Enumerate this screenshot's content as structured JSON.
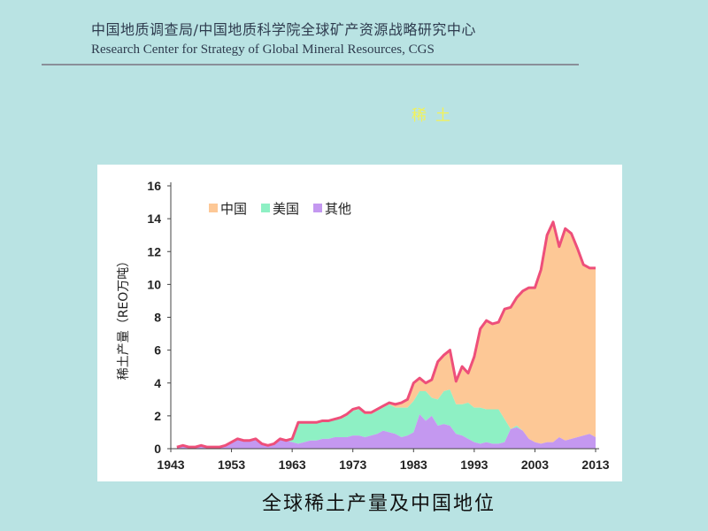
{
  "header": {
    "org_cn": "中国地质调查局/中国地质科学院全球矿产资源战略研究中心",
    "org_en": "Research Center for Strategy of Global Mineral Resources, CGS"
  },
  "topic": "稀土",
  "caption": "全球稀土产量及中国地位",
  "colors": {
    "background": "#b9e3e3",
    "china": "#fdc896",
    "usa": "#8ef0c4",
    "other": "#c498f0",
    "total_line": "#ee4f7a",
    "topic_text": "#f2f25a"
  },
  "chart_data": {
    "type": "area",
    "stacked": true,
    "ylabel": "稀土产量（REO万吨）",
    "xlabel": "",
    "ylim": [
      0,
      16
    ],
    "yticks": [
      "0",
      "2",
      "4",
      "6",
      "8",
      "10",
      "12",
      "14",
      "16"
    ],
    "xticks": [
      "1943",
      "1953",
      "1963",
      "1973",
      "1983",
      "1993",
      "2003",
      "2013"
    ],
    "xlim": [
      1943,
      2013
    ],
    "legend_position": "top-left",
    "legend": [
      "中国",
      "美国",
      "其他"
    ],
    "x": [
      1944,
      1945,
      1946,
      1947,
      1948,
      1949,
      1950,
      1951,
      1952,
      1953,
      1954,
      1955,
      1956,
      1957,
      1958,
      1959,
      1960,
      1961,
      1962,
      1963,
      1964,
      1965,
      1966,
      1967,
      1968,
      1969,
      1970,
      1971,
      1972,
      1973,
      1974,
      1975,
      1976,
      1977,
      1978,
      1979,
      1980,
      1981,
      1982,
      1983,
      1984,
      1985,
      1986,
      1987,
      1988,
      1989,
      1990,
      1991,
      1992,
      1993,
      1994,
      1995,
      1996,
      1997,
      1998,
      1999,
      2000,
      2001,
      2002,
      2003,
      2004,
      2005,
      2006,
      2007,
      2008,
      2009,
      2010,
      2011,
      2012,
      2013
    ],
    "series": [
      {
        "name": "其他",
        "values": [
          0.1,
          0.2,
          0.1,
          0.1,
          0.2,
          0.1,
          0.1,
          0.1,
          0.2,
          0.4,
          0.6,
          0.5,
          0.5,
          0.6,
          0.3,
          0.2,
          0.3,
          0.6,
          0.5,
          0.4,
          0.3,
          0.4,
          0.5,
          0.5,
          0.6,
          0.6,
          0.7,
          0.7,
          0.7,
          0.8,
          0.8,
          0.7,
          0.8,
          0.9,
          1.1,
          1.0,
          0.9,
          0.7,
          0.8,
          1.0,
          2.1,
          1.7,
          2.0,
          1.4,
          1.5,
          1.4,
          0.9,
          0.8,
          0.6,
          0.4,
          0.3,
          0.4,
          0.3,
          0.3,
          0.4,
          1.2,
          1.3,
          1.1,
          0.6,
          0.4,
          0.3,
          0.4,
          0.4,
          0.7,
          0.5,
          0.6,
          0.7,
          0.8,
          0.9,
          0.7
        ]
      },
      {
        "name": "美国",
        "values": [
          0,
          0,
          0,
          0,
          0,
          0,
          0,
          0,
          0,
          0,
          0,
          0,
          0,
          0,
          0,
          0,
          0,
          0,
          0,
          0.2,
          1.3,
          1.2,
          1.1,
          1.1,
          1.1,
          1.1,
          1.1,
          1.1,
          1.3,
          1.5,
          1.6,
          1.4,
          1.3,
          1.4,
          1.4,
          1.7,
          1.6,
          1.8,
          1.7,
          1.9,
          1.4,
          1.8,
          1.1,
          1.6,
          2.0,
          2.2,
          1.8,
          1.9,
          2.2,
          2.1,
          2.2,
          2.0,
          2.1,
          2.1,
          1.4,
          0,
          0.1,
          0,
          0,
          0,
          0,
          0,
          0,
          0,
          0,
          0,
          0,
          0,
          0,
          0
        ]
      },
      {
        "name": "中国",
        "values": [
          0,
          0,
          0,
          0,
          0,
          0,
          0,
          0,
          0,
          0,
          0,
          0,
          0,
          0,
          0,
          0,
          0,
          0,
          0,
          0,
          0,
          0,
          0,
          0,
          0,
          0,
          0,
          0.1,
          0.1,
          0.1,
          0.1,
          0.1,
          0.1,
          0.1,
          0.1,
          0.1,
          0.2,
          0.3,
          0.5,
          1.1,
          0.8,
          0.5,
          1.1,
          2.3,
          2.2,
          2.4,
          1.4,
          2.3,
          1.8,
          3.1,
          4.8,
          5.4,
          5.2,
          5.3,
          6.7,
          7.4,
          7.8,
          8.5,
          9.2,
          9.4,
          10.6,
          12.6,
          13.4,
          11.6,
          12.9,
          12.5,
          11.5,
          10.4,
          10.1,
          10.3
        ]
      }
    ]
  }
}
